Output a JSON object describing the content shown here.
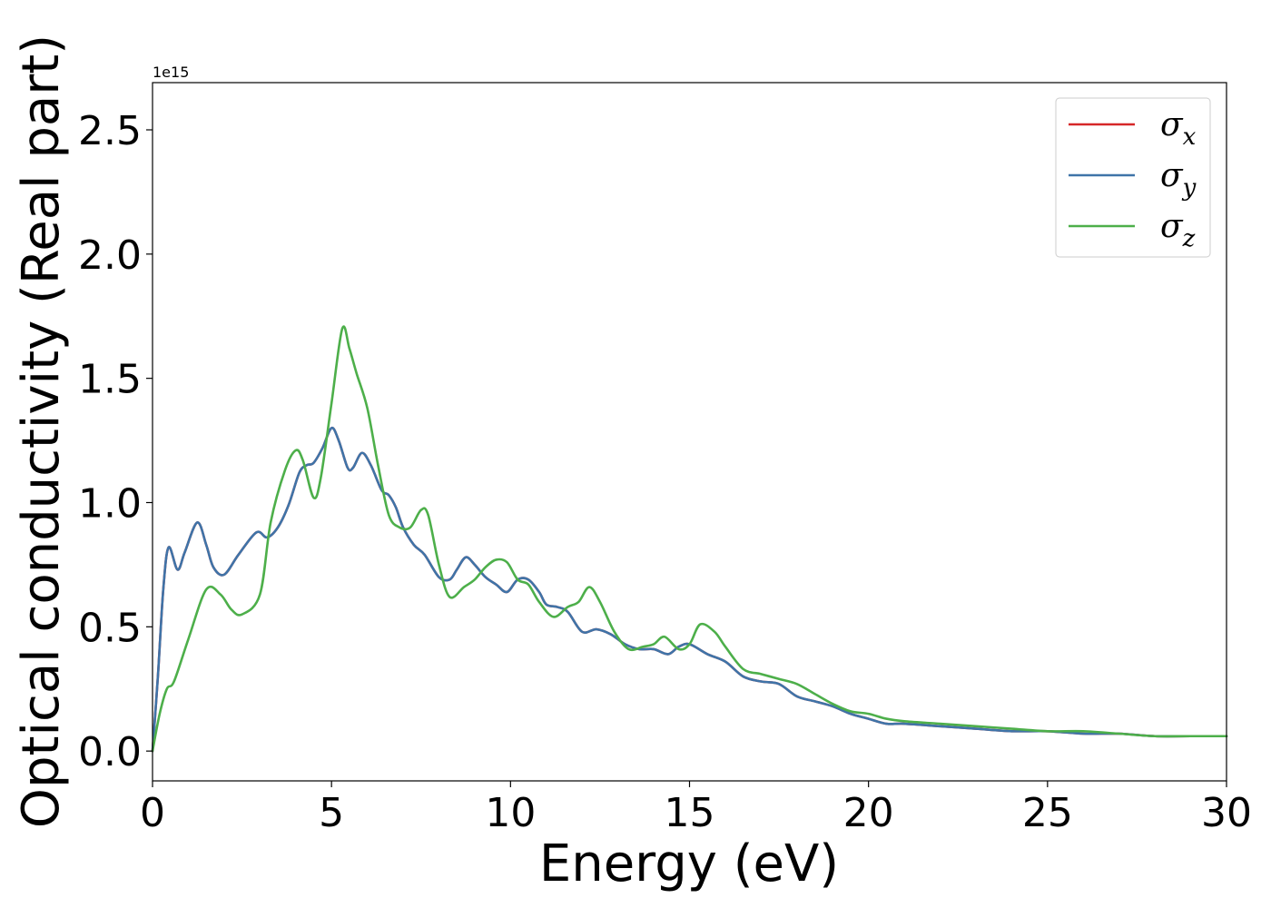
{
  "chart_data": {
    "type": "line",
    "xlabel": "Energy (eV)",
    "ylabel": "Optical conductivity (Real part)",
    "y_offset_label": "1e15",
    "xlim": [
      0,
      30
    ],
    "ylim": [
      -0.12,
      2.69
    ],
    "x_ticks": [
      0,
      5,
      10,
      15,
      20,
      25,
      30
    ],
    "x_tick_labels": [
      "0",
      "5",
      "10",
      "15",
      "20",
      "25",
      "30"
    ],
    "y_ticks": [
      0.0,
      0.5,
      1.0,
      1.5,
      2.0,
      2.5
    ],
    "y_tick_labels": [
      "0.0",
      "0.5",
      "1.0",
      "1.5",
      "2.0",
      "2.5"
    ],
    "grid": false,
    "legend_position": "top-right",
    "series": [
      {
        "name": "σ_x",
        "legend_base": "σ",
        "legend_sub": "x",
        "color": "#d62728",
        "x": [
          0,
          0.15,
          0.3,
          0.45,
          0.7,
          0.9,
          1.25,
          1.5,
          1.7,
          2.0,
          2.4,
          2.9,
          3.2,
          3.5,
          3.8,
          4.1,
          4.3,
          4.5,
          4.75,
          5.0,
          5.2,
          5.45,
          5.6,
          5.85,
          6.1,
          6.4,
          6.6,
          6.8,
          7.0,
          7.3,
          7.6,
          8.0,
          8.3,
          8.5,
          8.75,
          9.0,
          9.3,
          9.6,
          9.9,
          10.2,
          10.5,
          10.8,
          11.0,
          11.3,
          11.6,
          12.0,
          12.4,
          12.8,
          13.2,
          13.6,
          14.0,
          14.4,
          14.7,
          15.0,
          15.5,
          16.0,
          16.5,
          17.0,
          17.5,
          18.0,
          18.5,
          19.0,
          19.5,
          20.0,
          20.5,
          21.0,
          22.0,
          23.0,
          24.0,
          25.0,
          26.0,
          27.0,
          28.0,
          29.0,
          30.0
        ],
        "values": [
          0.0,
          0.3,
          0.65,
          0.82,
          0.73,
          0.8,
          0.92,
          0.83,
          0.74,
          0.71,
          0.79,
          0.88,
          0.86,
          0.9,
          0.99,
          1.12,
          1.15,
          1.16,
          1.22,
          1.3,
          1.25,
          1.14,
          1.14,
          1.2,
          1.15,
          1.05,
          1.03,
          0.98,
          0.9,
          0.83,
          0.79,
          0.7,
          0.69,
          0.73,
          0.78,
          0.75,
          0.7,
          0.67,
          0.64,
          0.69,
          0.69,
          0.64,
          0.59,
          0.58,
          0.56,
          0.48,
          0.49,
          0.47,
          0.43,
          0.41,
          0.41,
          0.39,
          0.42,
          0.43,
          0.39,
          0.36,
          0.3,
          0.28,
          0.27,
          0.22,
          0.2,
          0.18,
          0.15,
          0.13,
          0.11,
          0.11,
          0.1,
          0.09,
          0.08,
          0.08,
          0.07,
          0.07,
          0.06,
          0.06,
          0.06
        ]
      },
      {
        "name": "σ_y",
        "legend_base": "σ",
        "legend_sub": "y",
        "color": "#3f74a8",
        "x": [
          0,
          0.15,
          0.3,
          0.45,
          0.7,
          0.9,
          1.25,
          1.5,
          1.7,
          2.0,
          2.4,
          2.9,
          3.2,
          3.5,
          3.8,
          4.1,
          4.3,
          4.5,
          4.75,
          5.0,
          5.2,
          5.45,
          5.6,
          5.85,
          6.1,
          6.4,
          6.6,
          6.8,
          7.0,
          7.3,
          7.6,
          8.0,
          8.3,
          8.5,
          8.75,
          9.0,
          9.3,
          9.6,
          9.9,
          10.2,
          10.5,
          10.8,
          11.0,
          11.3,
          11.6,
          12.0,
          12.4,
          12.8,
          13.2,
          13.6,
          14.0,
          14.4,
          14.7,
          15.0,
          15.5,
          16.0,
          16.5,
          17.0,
          17.5,
          18.0,
          18.5,
          19.0,
          19.5,
          20.0,
          20.5,
          21.0,
          22.0,
          23.0,
          24.0,
          25.0,
          26.0,
          27.0,
          28.0,
          29.0,
          30.0
        ],
        "values": [
          0.0,
          0.3,
          0.65,
          0.82,
          0.73,
          0.8,
          0.92,
          0.83,
          0.74,
          0.71,
          0.79,
          0.88,
          0.86,
          0.9,
          0.99,
          1.12,
          1.15,
          1.16,
          1.22,
          1.3,
          1.25,
          1.14,
          1.14,
          1.2,
          1.15,
          1.05,
          1.03,
          0.98,
          0.9,
          0.83,
          0.79,
          0.7,
          0.69,
          0.73,
          0.78,
          0.75,
          0.7,
          0.67,
          0.64,
          0.69,
          0.69,
          0.64,
          0.59,
          0.58,
          0.56,
          0.48,
          0.49,
          0.47,
          0.43,
          0.41,
          0.41,
          0.39,
          0.42,
          0.43,
          0.39,
          0.36,
          0.3,
          0.28,
          0.27,
          0.22,
          0.2,
          0.18,
          0.15,
          0.13,
          0.11,
          0.11,
          0.1,
          0.09,
          0.08,
          0.08,
          0.07,
          0.07,
          0.06,
          0.06,
          0.06
        ]
      },
      {
        "name": "σ_z",
        "legend_base": "σ",
        "legend_sub": "z",
        "color": "#4daf4a",
        "x": [
          0,
          0.2,
          0.4,
          0.6,
          1.0,
          1.5,
          1.9,
          2.2,
          2.5,
          3.0,
          3.3,
          3.7,
          4.0,
          4.2,
          4.5,
          4.7,
          5.0,
          5.3,
          5.5,
          5.7,
          6.0,
          6.3,
          6.6,
          6.9,
          7.2,
          7.5,
          7.7,
          8.0,
          8.3,
          8.7,
          9.0,
          9.3,
          9.6,
          9.9,
          10.2,
          10.5,
          10.8,
          11.2,
          11.6,
          11.9,
          12.2,
          12.5,
          12.9,
          13.3,
          13.7,
          14.0,
          14.3,
          14.7,
          15.0,
          15.3,
          15.7,
          16.0,
          16.5,
          17.0,
          17.5,
          18.0,
          18.5,
          19.0,
          19.5,
          20.0,
          20.5,
          21.0,
          22.0,
          23.0,
          24.0,
          25.0,
          26.0,
          27.0,
          28.0,
          29.0,
          30.0
        ],
        "values": [
          0.0,
          0.15,
          0.25,
          0.28,
          0.45,
          0.65,
          0.63,
          0.57,
          0.55,
          0.63,
          0.92,
          1.13,
          1.21,
          1.17,
          1.02,
          1.1,
          1.4,
          1.7,
          1.62,
          1.52,
          1.38,
          1.15,
          0.95,
          0.9,
          0.9,
          0.97,
          0.95,
          0.75,
          0.62,
          0.66,
          0.69,
          0.74,
          0.77,
          0.76,
          0.69,
          0.67,
          0.6,
          0.54,
          0.58,
          0.6,
          0.66,
          0.6,
          0.48,
          0.41,
          0.42,
          0.43,
          0.46,
          0.41,
          0.43,
          0.51,
          0.48,
          0.42,
          0.33,
          0.31,
          0.29,
          0.27,
          0.23,
          0.19,
          0.16,
          0.15,
          0.13,
          0.12,
          0.11,
          0.1,
          0.09,
          0.08,
          0.08,
          0.07,
          0.06,
          0.06,
          0.06
        ]
      }
    ]
  }
}
